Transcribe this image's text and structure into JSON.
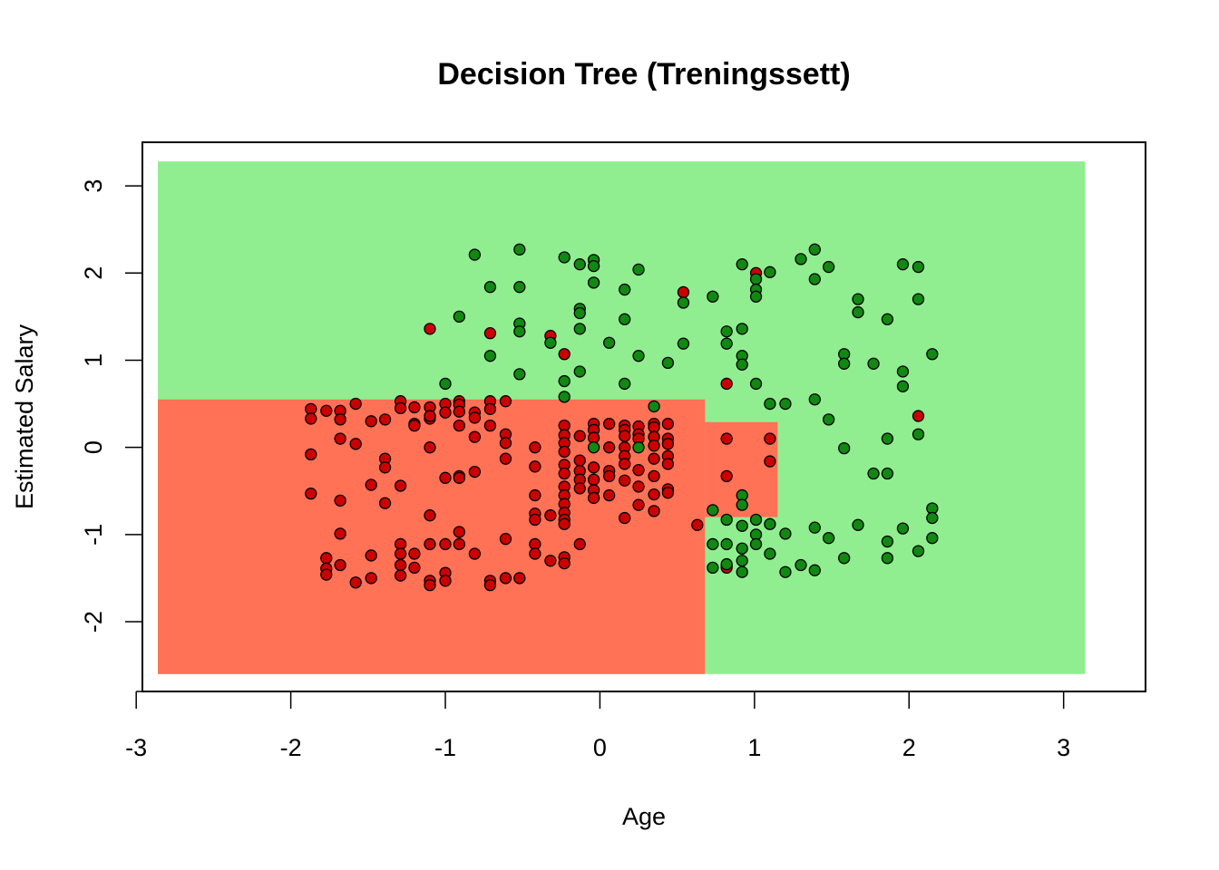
{
  "chart_data": {
    "type": "scatter",
    "title": "Decision Tree (Treningssett)",
    "xlabel": "Age",
    "ylabel": "Estimated Salary",
    "xlim": [
      -2.96,
      3.53
    ],
    "ylim": [
      -2.8,
      3.5
    ],
    "xticks": [
      -3,
      -2,
      -1,
      0,
      1,
      2,
      3
    ],
    "yticks": [
      -2,
      -1,
      0,
      1,
      2,
      3
    ],
    "grid": false,
    "legend": "none",
    "colors": {
      "region_0": "#FF7256",
      "region_1": "#90EE90",
      "class_0_point": "#CC0000",
      "class_1_point": "#118811",
      "point_border": "#000000"
    },
    "regions": [
      {
        "class": 1,
        "x": [
          -2.86,
          3.14
        ],
        "y": [
          -2.6,
          3.28
        ]
      },
      {
        "class": 0,
        "x": [
          -2.86,
          0.68
        ],
        "y": [
          -2.6,
          0.55
        ]
      },
      {
        "class": 0,
        "x": [
          0.68,
          1.15
        ],
        "y": [
          -0.8,
          0.29
        ]
      }
    ],
    "series": [
      {
        "class": 0,
        "points": [
          [
            -1.87,
            0.44
          ],
          [
            -1.87,
            0.33
          ],
          [
            -1.87,
            -0.08
          ],
          [
            -1.87,
            -0.53
          ],
          [
            -1.77,
            0.42
          ],
          [
            -1.77,
            -1.27
          ],
          [
            -1.77,
            -1.39
          ],
          [
            -1.77,
            -1.46
          ],
          [
            -1.68,
            0.42
          ],
          [
            -1.68,
            0.32
          ],
          [
            -1.68,
            0.1
          ],
          [
            -1.68,
            -0.61
          ],
          [
            -1.68,
            -0.99
          ],
          [
            -1.68,
            -1.35
          ],
          [
            -1.58,
            0.5
          ],
          [
            -1.58,
            0.04
          ],
          [
            -1.58,
            -1.55
          ],
          [
            -1.48,
            0.3
          ],
          [
            -1.48,
            -0.43
          ],
          [
            -1.48,
            -1.24
          ],
          [
            -1.48,
            -1.5
          ],
          [
            -1.39,
            0.32
          ],
          [
            -1.39,
            -0.13
          ],
          [
            -1.39,
            -0.23
          ],
          [
            -1.39,
            -0.64
          ],
          [
            -1.29,
            0.53
          ],
          [
            -1.29,
            0.45
          ],
          [
            -1.29,
            -0.44
          ],
          [
            -1.29,
            -1.11
          ],
          [
            -1.29,
            -1.22
          ],
          [
            -1.29,
            -1.35
          ],
          [
            -1.29,
            -1.47
          ],
          [
            -1.2,
            0.46
          ],
          [
            -1.2,
            0.27
          ],
          [
            -1.2,
            0.25
          ],
          [
            -1.2,
            -1.22
          ],
          [
            -1.2,
            -1.38
          ],
          [
            -1.1,
            1.36
          ],
          [
            -1.1,
            0.46
          ],
          [
            -1.1,
            0.33
          ],
          [
            -1.1,
            0.36
          ],
          [
            -1.1,
            0.0
          ],
          [
            -1.1,
            -0.78
          ],
          [
            -1.1,
            -1.11
          ],
          [
            -1.1,
            -1.53
          ],
          [
            -1.1,
            -1.58
          ],
          [
            -1.0,
            0.5
          ],
          [
            -1.0,
            0.4
          ],
          [
            -1.0,
            -0.35
          ],
          [
            -1.0,
            -1.11
          ],
          [
            -1.0,
            -1.44
          ],
          [
            -1.0,
            -1.53
          ],
          [
            -0.91,
            0.53
          ],
          [
            -0.91,
            0.49
          ],
          [
            -0.91,
            0.41
          ],
          [
            -0.91,
            0.25
          ],
          [
            -0.91,
            -0.33
          ],
          [
            -0.91,
            -0.35
          ],
          [
            -0.91,
            -0.97
          ],
          [
            -0.91,
            -1.11
          ],
          [
            -0.81,
            0.4
          ],
          [
            -0.81,
            0.34
          ],
          [
            -0.81,
            0.12
          ],
          [
            -0.81,
            -0.28
          ],
          [
            -0.81,
            -1.22
          ],
          [
            -0.71,
            1.31
          ],
          [
            -0.71,
            0.53
          ],
          [
            -0.71,
            0.44
          ],
          [
            -0.71,
            0.25
          ],
          [
            -0.71,
            -1.53
          ],
          [
            -0.71,
            -1.58
          ],
          [
            -0.61,
            0.53
          ],
          [
            -0.61,
            0.15
          ],
          [
            -0.61,
            0.05
          ],
          [
            -0.61,
            -0.13
          ],
          [
            -0.61,
            -1.05
          ],
          [
            -0.61,
            -1.5
          ],
          [
            -0.52,
            -1.5
          ],
          [
            -0.42,
            0.0
          ],
          [
            -0.42,
            -0.22
          ],
          [
            -0.42,
            -0.55
          ],
          [
            -0.42,
            -0.76
          ],
          [
            -0.42,
            -0.83
          ],
          [
            -0.42,
            -1.11
          ],
          [
            -0.42,
            -1.22
          ],
          [
            -0.32,
            1.28
          ],
          [
            -0.32,
            -0.78
          ],
          [
            -0.32,
            -1.3
          ],
          [
            -0.23,
            1.07
          ],
          [
            -0.23,
            0.25
          ],
          [
            -0.23,
            0.14
          ],
          [
            -0.23,
            0.05
          ],
          [
            -0.23,
            -0.05
          ],
          [
            -0.23,
            -0.2
          ],
          [
            -0.23,
            -0.3
          ],
          [
            -0.23,
            -0.45
          ],
          [
            -0.23,
            -0.55
          ],
          [
            -0.23,
            -0.65
          ],
          [
            -0.23,
            -0.75
          ],
          [
            -0.23,
            -0.83
          ],
          [
            -0.23,
            -0.88
          ],
          [
            -0.23,
            -1.26
          ],
          [
            -0.23,
            -1.33
          ],
          [
            -0.13,
            0.13
          ],
          [
            -0.13,
            -0.15
          ],
          [
            -0.13,
            -0.27
          ],
          [
            -0.13,
            -0.37
          ],
          [
            -0.13,
            -0.47
          ],
          [
            -0.13,
            -1.11
          ],
          [
            -0.04,
            0.27
          ],
          [
            -0.04,
            0.2
          ],
          [
            -0.04,
            0.11
          ],
          [
            -0.04,
            -0.23
          ],
          [
            -0.04,
            -0.37
          ],
          [
            -0.04,
            -0.49
          ],
          [
            -0.04,
            -0.58
          ],
          [
            0.06,
            0.27
          ],
          [
            0.06,
            0.0
          ],
          [
            0.06,
            -0.27
          ],
          [
            0.06,
            -0.33
          ],
          [
            0.06,
            -0.55
          ],
          [
            0.16,
            0.25
          ],
          [
            0.16,
            0.2
          ],
          [
            0.16,
            0.13
          ],
          [
            0.16,
            0.0
          ],
          [
            0.16,
            -0.1
          ],
          [
            0.16,
            -0.19
          ],
          [
            0.16,
            -0.38
          ],
          [
            0.16,
            -0.81
          ],
          [
            0.25,
            0.24
          ],
          [
            0.25,
            0.15
          ],
          [
            0.25,
            0.1
          ],
          [
            0.25,
            -0.26
          ],
          [
            0.25,
            -0.45
          ],
          [
            0.25,
            -0.66
          ],
          [
            0.35,
            0.27
          ],
          [
            0.35,
            0.23
          ],
          [
            0.35,
            0.12
          ],
          [
            0.35,
            0.02
          ],
          [
            0.35,
            -0.13
          ],
          [
            0.35,
            -0.33
          ],
          [
            0.35,
            -0.54
          ],
          [
            0.35,
            -0.73
          ],
          [
            0.44,
            0.27
          ],
          [
            0.44,
            0.1
          ],
          [
            0.44,
            0.04
          ],
          [
            0.44,
            -0.1
          ],
          [
            0.44,
            -0.19
          ],
          [
            0.44,
            -0.48
          ],
          [
            0.44,
            -0.52
          ],
          [
            0.54,
            1.78
          ],
          [
            0.63,
            -0.89
          ],
          [
            0.82,
            0.73
          ],
          [
            0.82,
            0.1
          ],
          [
            0.82,
            -0.33
          ],
          [
            0.82,
            -1.36
          ],
          [
            0.82,
            -1.38
          ],
          [
            1.01,
            2.0
          ],
          [
            1.1,
            0.1
          ],
          [
            1.1,
            -0.16
          ],
          [
            2.06,
            0.36
          ]
        ]
      },
      {
        "class": 1,
        "points": [
          [
            -1.0,
            0.73
          ],
          [
            -0.91,
            1.5
          ],
          [
            -0.81,
            2.21
          ],
          [
            -0.71,
            1.84
          ],
          [
            -0.71,
            1.05
          ],
          [
            -0.52,
            2.27
          ],
          [
            -0.52,
            1.84
          ],
          [
            -0.52,
            1.42
          ],
          [
            -0.52,
            1.33
          ],
          [
            -0.52,
            0.84
          ],
          [
            -0.32,
            1.2
          ],
          [
            -0.23,
            2.18
          ],
          [
            -0.23,
            0.76
          ],
          [
            -0.23,
            0.58
          ],
          [
            -0.13,
            2.1
          ],
          [
            -0.13,
            1.59
          ],
          [
            -0.13,
            1.54
          ],
          [
            -0.13,
            1.36
          ],
          [
            -0.13,
            0.87
          ],
          [
            -0.04,
            2.15
          ],
          [
            -0.04,
            2.08
          ],
          [
            -0.04,
            1.89
          ],
          [
            -0.04,
            0.0
          ],
          [
            0.06,
            1.2
          ],
          [
            0.16,
            1.81
          ],
          [
            0.16,
            1.47
          ],
          [
            0.16,
            0.73
          ],
          [
            0.25,
            2.04
          ],
          [
            0.25,
            1.05
          ],
          [
            0.25,
            0.0
          ],
          [
            0.35,
            0.47
          ],
          [
            0.44,
            0.97
          ],
          [
            0.54,
            1.66
          ],
          [
            0.54,
            1.19
          ],
          [
            0.73,
            1.73
          ],
          [
            0.73,
            -0.72
          ],
          [
            0.73,
            -1.11
          ],
          [
            0.73,
            -1.38
          ],
          [
            0.82,
            1.33
          ],
          [
            0.82,
            1.19
          ],
          [
            0.82,
            -0.83
          ],
          [
            0.82,
            -1.11
          ],
          [
            0.82,
            -1.34
          ],
          [
            0.92,
            2.1
          ],
          [
            0.92,
            1.36
          ],
          [
            0.92,
            1.05
          ],
          [
            0.92,
            0.95
          ],
          [
            0.92,
            -0.55
          ],
          [
            0.92,
            -0.66
          ],
          [
            0.92,
            -0.9
          ],
          [
            0.92,
            -1.16
          ],
          [
            0.92,
            -1.3
          ],
          [
            0.92,
            -1.43
          ],
          [
            1.01,
            1.93
          ],
          [
            1.01,
            1.81
          ],
          [
            1.01,
            1.73
          ],
          [
            1.01,
            0.73
          ],
          [
            1.01,
            -0.83
          ],
          [
            1.01,
            -1.0
          ],
          [
            1.01,
            -1.11
          ],
          [
            1.1,
            2.01
          ],
          [
            1.1,
            0.5
          ],
          [
            1.1,
            -0.88
          ],
          [
            1.1,
            -1.22
          ],
          [
            1.2,
            0.5
          ],
          [
            1.2,
            -0.99
          ],
          [
            1.2,
            -1.43
          ],
          [
            1.3,
            2.16
          ],
          [
            1.3,
            -1.35
          ],
          [
            1.39,
            2.27
          ],
          [
            1.39,
            1.93
          ],
          [
            1.39,
            0.55
          ],
          [
            1.39,
            -0.92
          ],
          [
            1.39,
            -1.41
          ],
          [
            1.48,
            2.07
          ],
          [
            1.48,
            0.32
          ],
          [
            1.48,
            -1.04
          ],
          [
            1.58,
            1.07
          ],
          [
            1.58,
            0.96
          ],
          [
            1.58,
            -0.01
          ],
          [
            1.58,
            -1.27
          ],
          [
            1.67,
            1.7
          ],
          [
            1.67,
            1.55
          ],
          [
            1.67,
            -0.89
          ],
          [
            1.77,
            0.96
          ],
          [
            1.77,
            -0.3
          ],
          [
            1.86,
            1.47
          ],
          [
            1.86,
            0.1
          ],
          [
            1.86,
            -0.3
          ],
          [
            1.86,
            -1.08
          ],
          [
            1.86,
            -1.27
          ],
          [
            1.96,
            2.1
          ],
          [
            1.96,
            0.87
          ],
          [
            1.96,
            0.7
          ],
          [
            1.96,
            -0.93
          ],
          [
            2.06,
            2.07
          ],
          [
            2.06,
            1.7
          ],
          [
            2.06,
            0.15
          ],
          [
            2.06,
            -1.19
          ],
          [
            2.15,
            1.07
          ],
          [
            2.15,
            -0.7
          ],
          [
            2.15,
            -0.81
          ],
          [
            2.15,
            -1.04
          ]
        ]
      }
    ]
  }
}
